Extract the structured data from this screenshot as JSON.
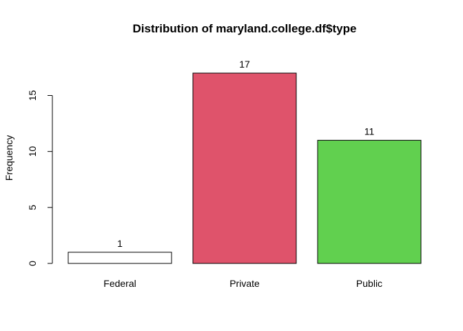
{
  "chart_data": {
    "type": "bar",
    "title": "Distribution of maryland.college.df$type",
    "xlabel": "",
    "ylabel": "Frequency",
    "categories": [
      "Federal",
      "Private",
      "Public"
    ],
    "values": [
      1,
      17,
      11
    ],
    "data_labels": [
      "1",
      "17",
      "11"
    ],
    "bar_colors": [
      "#FFFFFF",
      "#DF536B",
      "#61D04F"
    ],
    "bar_border_color": "#000000",
    "ylim": [
      0,
      17
    ],
    "yticks": [
      0,
      5,
      10,
      15
    ],
    "ytick_labels": [
      "0",
      "5",
      "10",
      "15"
    ],
    "grid": false,
    "legend": "none"
  }
}
